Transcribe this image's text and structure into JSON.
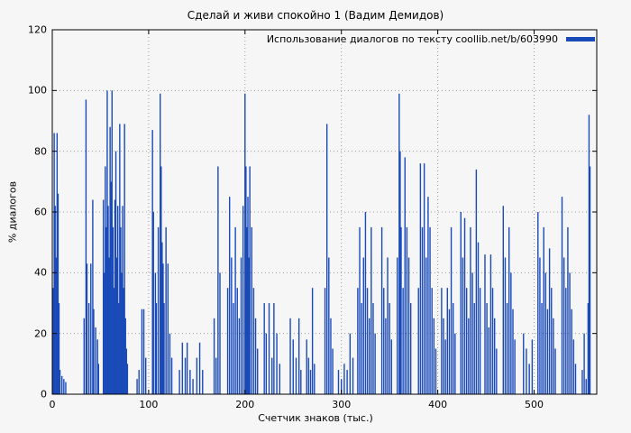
{
  "colors": {
    "bar": "#1a4ab8",
    "grid": "#9a9a9a",
    "frame": "#000000",
    "background": "#f6f6f6",
    "text": "#000000"
  },
  "chart_data": {
    "type": "bar",
    "title": "Сделай и живи спокойно 1 (Вадим Демидов)",
    "legend_label": "Использование диалогов по тексту coollib.net/b/603990",
    "xlabel": "Счетчик знаков (тыс.)",
    "ylabel": "% диалогов",
    "xlim": [
      0,
      565
    ],
    "ylim": [
      0,
      120
    ],
    "x_ticks": [
      0,
      100,
      200,
      300,
      400,
      500
    ],
    "y_ticks": [
      0,
      20,
      40,
      60,
      80,
      100,
      120
    ],
    "grid": true,
    "legend_position": "top-right",
    "points": [
      [
        1,
        35
      ],
      [
        2,
        86
      ],
      [
        3,
        62
      ],
      [
        4,
        45
      ],
      [
        5,
        86
      ],
      [
        6,
        66
      ],
      [
        7,
        30
      ],
      [
        8,
        8
      ],
      [
        10,
        6
      ],
      [
        12,
        5
      ],
      [
        14,
        4
      ],
      [
        33,
        25
      ],
      [
        35,
        97
      ],
      [
        36,
        43
      ],
      [
        38,
        30
      ],
      [
        40,
        43
      ],
      [
        42,
        64
      ],
      [
        43,
        28
      ],
      [
        45,
        22
      ],
      [
        47,
        18
      ],
      [
        48,
        10
      ],
      [
        53,
        64
      ],
      [
        54,
        40
      ],
      [
        55,
        75
      ],
      [
        56,
        55
      ],
      [
        57,
        100
      ],
      [
        58,
        62
      ],
      [
        59,
        45
      ],
      [
        60,
        88
      ],
      [
        61,
        70
      ],
      [
        62,
        100
      ],
      [
        63,
        55
      ],
      [
        64,
        35
      ],
      [
        65,
        64
      ],
      [
        66,
        80
      ],
      [
        67,
        45
      ],
      [
        68,
        62
      ],
      [
        69,
        30
      ],
      [
        70,
        89
      ],
      [
        71,
        55
      ],
      [
        72,
        40
      ],
      [
        73,
        62
      ],
      [
        74,
        35
      ],
      [
        75,
        89
      ],
      [
        76,
        25
      ],
      [
        77,
        15
      ],
      [
        78,
        10
      ],
      [
        88,
        5
      ],
      [
        90,
        8
      ],
      [
        93,
        28
      ],
      [
        95,
        28
      ],
      [
        97,
        12
      ],
      [
        104,
        87
      ],
      [
        105,
        60
      ],
      [
        107,
        40
      ],
      [
        108,
        30
      ],
      [
        110,
        55
      ],
      [
        112,
        99
      ],
      [
        113,
        75
      ],
      [
        114,
        50
      ],
      [
        115,
        43
      ],
      [
        116,
        30
      ],
      [
        118,
        55
      ],
      [
        120,
        43
      ],
      [
        122,
        20
      ],
      [
        124,
        12
      ],
      [
        132,
        8
      ],
      [
        135,
        17
      ],
      [
        138,
        12
      ],
      [
        140,
        17
      ],
      [
        143,
        8
      ],
      [
        146,
        5
      ],
      [
        150,
        12
      ],
      [
        153,
        17
      ],
      [
        156,
        8
      ],
      [
        168,
        25
      ],
      [
        170,
        12
      ],
      [
        172,
        75
      ],
      [
        174,
        40
      ],
      [
        182,
        35
      ],
      [
        184,
        65
      ],
      [
        186,
        45
      ],
      [
        188,
        30
      ],
      [
        190,
        55
      ],
      [
        192,
        35
      ],
      [
        194,
        25
      ],
      [
        196,
        45
      ],
      [
        198,
        62
      ],
      [
        200,
        99
      ],
      [
        201,
        75
      ],
      [
        202,
        55
      ],
      [
        203,
        65
      ],
      [
        204,
        45
      ],
      [
        205,
        75
      ],
      [
        207,
        55
      ],
      [
        209,
        35
      ],
      [
        211,
        25
      ],
      [
        213,
        15
      ],
      [
        220,
        30
      ],
      [
        222,
        20
      ],
      [
        225,
        30
      ],
      [
        228,
        12
      ],
      [
        230,
        30
      ],
      [
        233,
        20
      ],
      [
        236,
        10
      ],
      [
        247,
        25
      ],
      [
        250,
        18
      ],
      [
        253,
        12
      ],
      [
        256,
        25
      ],
      [
        258,
        8
      ],
      [
        264,
        18
      ],
      [
        266,
        12
      ],
      [
        268,
        8
      ],
      [
        270,
        35
      ],
      [
        272,
        10
      ],
      [
        283,
        35
      ],
      [
        285,
        89
      ],
      [
        287,
        45
      ],
      [
        289,
        25
      ],
      [
        291,
        15
      ],
      [
        297,
        8
      ],
      [
        300,
        5
      ],
      [
        303,
        10
      ],
      [
        306,
        8
      ],
      [
        309,
        20
      ],
      [
        312,
        12
      ],
      [
        317,
        35
      ],
      [
        319,
        55
      ],
      [
        321,
        30
      ],
      [
        323,
        45
      ],
      [
        325,
        60
      ],
      [
        327,
        35
      ],
      [
        329,
        25
      ],
      [
        331,
        55
      ],
      [
        333,
        30
      ],
      [
        335,
        20
      ],
      [
        342,
        55
      ],
      [
        344,
        35
      ],
      [
        346,
        25
      ],
      [
        348,
        45
      ],
      [
        350,
        30
      ],
      [
        352,
        18
      ],
      [
        358,
        45
      ],
      [
        360,
        99
      ],
      [
        361,
        80
      ],
      [
        362,
        55
      ],
      [
        364,
        35
      ],
      [
        366,
        78
      ],
      [
        368,
        55
      ],
      [
        370,
        45
      ],
      [
        372,
        30
      ],
      [
        380,
        35
      ],
      [
        382,
        76
      ],
      [
        384,
        55
      ],
      [
        386,
        76
      ],
      [
        388,
        45
      ],
      [
        390,
        65
      ],
      [
        392,
        55
      ],
      [
        394,
        35
      ],
      [
        396,
        25
      ],
      [
        398,
        15
      ],
      [
        404,
        35
      ],
      [
        406,
        25
      ],
      [
        408,
        18
      ],
      [
        410,
        35
      ],
      [
        412,
        28
      ],
      [
        414,
        55
      ],
      [
        416,
        30
      ],
      [
        418,
        20
      ],
      [
        424,
        60
      ],
      [
        426,
        45
      ],
      [
        428,
        58
      ],
      [
        430,
        35
      ],
      [
        432,
        25
      ],
      [
        434,
        55
      ],
      [
        436,
        40
      ],
      [
        438,
        30
      ],
      [
        440,
        74
      ],
      [
        442,
        50
      ],
      [
        444,
        35
      ],
      [
        449,
        46
      ],
      [
        451,
        30
      ],
      [
        453,
        22
      ],
      [
        455,
        46
      ],
      [
        457,
        35
      ],
      [
        459,
        25
      ],
      [
        461,
        15
      ],
      [
        468,
        62
      ],
      [
        470,
        45
      ],
      [
        472,
        30
      ],
      [
        474,
        55
      ],
      [
        476,
        40
      ],
      [
        478,
        28
      ],
      [
        480,
        18
      ],
      [
        489,
        20
      ],
      [
        492,
        15
      ],
      [
        495,
        10
      ],
      [
        498,
        18
      ],
      [
        504,
        60
      ],
      [
        506,
        45
      ],
      [
        508,
        30
      ],
      [
        510,
        55
      ],
      [
        512,
        40
      ],
      [
        514,
        28
      ],
      [
        516,
        48
      ],
      [
        518,
        35
      ],
      [
        520,
        25
      ],
      [
        522,
        15
      ],
      [
        529,
        65
      ],
      [
        531,
        45
      ],
      [
        533,
        35
      ],
      [
        535,
        55
      ],
      [
        537,
        40
      ],
      [
        539,
        28
      ],
      [
        541,
        18
      ],
      [
        543,
        10
      ],
      [
        550,
        8
      ],
      [
        552,
        20
      ],
      [
        554,
        5
      ],
      [
        556,
        30
      ],
      [
        557,
        92
      ],
      [
        558,
        75
      ]
    ]
  }
}
